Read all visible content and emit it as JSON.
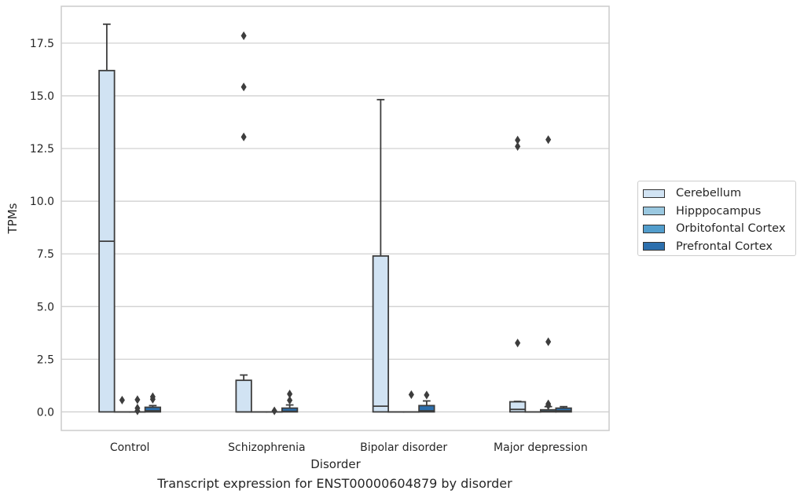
{
  "caption": "Transcript expression for ENST00000604879 by disorder",
  "chart_data": {
    "type": "box",
    "xlabel": "Disorder",
    "ylabel": "TPMs",
    "categories": [
      "Control",
      "Schizophrenia",
      "Bipolar disorder",
      "Major depression"
    ],
    "yticks": [
      "0.0",
      "2.5",
      "5.0",
      "7.5",
      "10.0",
      "12.5",
      "15.0",
      "17.5"
    ],
    "ylim": [
      -0.88,
      19.25
    ],
    "grid": "horizontal",
    "legend_position": "right",
    "series": [
      {
        "name": "Cerebellum",
        "color": "#d1e3f3",
        "boxes": [
          {
            "q1": 0.0,
            "median": 8.1,
            "q3": 16.2,
            "whisker_low": 0.0,
            "whisker_high": 18.4,
            "outliers": []
          },
          {
            "q1": 0.0,
            "median": 0.0,
            "q3": 1.5,
            "whisker_low": 0.0,
            "whisker_high": 1.75,
            "outliers": [
              17.85,
              15.42,
              13.05
            ]
          },
          {
            "q1": 0.0,
            "median": 0.27,
            "q3": 7.4,
            "whisker_low": 0.0,
            "whisker_high": 14.82,
            "outliers": []
          },
          {
            "q1": 0.0,
            "median": 0.12,
            "q3": 0.48,
            "whisker_low": 0.0,
            "whisker_high": 0.5,
            "outliers": [
              12.9,
              12.6,
              3.27
            ]
          }
        ]
      },
      {
        "name": "Hipppocampus",
        "color": "#9ac8e0",
        "boxes": [
          {
            "q1": 0.0,
            "median": 0.0,
            "q3": 0.0,
            "whisker_low": 0.0,
            "whisker_high": 0.0,
            "outliers": [
              0.56
            ]
          },
          {
            "q1": 0.0,
            "median": 0.0,
            "q3": 0.0,
            "whisker_low": 0.0,
            "whisker_high": 0.0,
            "outliers": []
          },
          {
            "q1": 0.0,
            "median": 0.0,
            "q3": 0.0,
            "whisker_low": 0.0,
            "whisker_high": 0.0,
            "outliers": []
          },
          {
            "q1": 0.0,
            "median": 0.0,
            "q3": 0.0,
            "whisker_low": 0.0,
            "whisker_high": 0.0,
            "outliers": []
          }
        ]
      },
      {
        "name": "Orbitofontal Cortex",
        "color": "#529dcc",
        "boxes": [
          {
            "q1": 0.0,
            "median": 0.0,
            "q3": 0.0,
            "whisker_low": 0.0,
            "whisker_high": 0.0,
            "outliers": [
              0.58,
              0.18,
              0.05
            ]
          },
          {
            "q1": 0.0,
            "median": 0.0,
            "q3": 0.0,
            "whisker_low": 0.0,
            "whisker_high": 0.0,
            "outliers": [
              0.05
            ]
          },
          {
            "q1": 0.0,
            "median": 0.0,
            "q3": 0.0,
            "whisker_low": 0.0,
            "whisker_high": 0.0,
            "outliers": [
              0.82
            ]
          },
          {
            "q1": 0.0,
            "median": 0.03,
            "q3": 0.1,
            "whisker_low": 0.0,
            "whisker_high": 0.25,
            "outliers": [
              12.92,
              3.33,
              0.38,
              0.3
            ]
          }
        ]
      },
      {
        "name": "Prefrontal Cortex",
        "color": "#2c6fad",
        "boxes": [
          {
            "q1": 0.0,
            "median": 0.05,
            "q3": 0.22,
            "whisker_low": 0.0,
            "whisker_high": 0.3,
            "outliers": [
              0.72,
              0.6
            ]
          },
          {
            "q1": 0.0,
            "median": 0.03,
            "q3": 0.18,
            "whisker_low": 0.0,
            "whisker_high": 0.33,
            "outliers": [
              0.85,
              0.55
            ]
          },
          {
            "q1": 0.0,
            "median": 0.05,
            "q3": 0.3,
            "whisker_low": 0.0,
            "whisker_high": 0.52,
            "outliers": [
              0.8
            ]
          },
          {
            "q1": 0.0,
            "median": 0.05,
            "q3": 0.18,
            "whisker_low": 0.0,
            "whisker_high": 0.25,
            "outliers": []
          }
        ]
      }
    ]
  }
}
